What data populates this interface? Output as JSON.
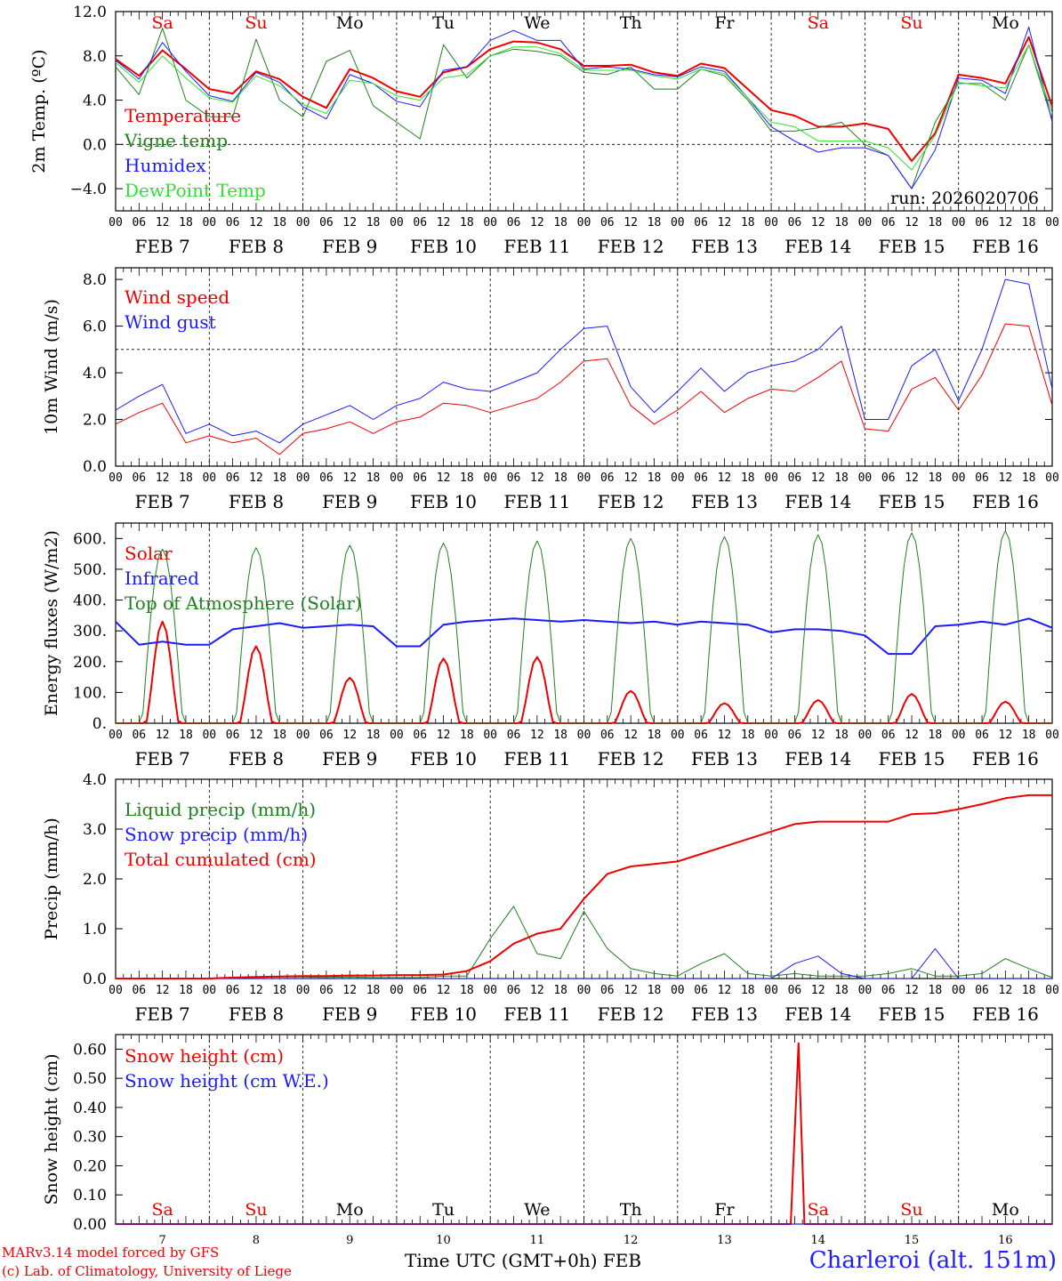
{
  "run": "run: 2026020706",
  "day_labels": [
    "FEB  7",
    "FEB  8",
    "FEB  9",
    "FEB 10",
    "FEB 11",
    "FEB 12",
    "FEB 13",
    "FEB 14",
    "FEB 15",
    "FEB 16"
  ],
  "hour_labels": [
    "00",
    "06",
    "12",
    "18"
  ],
  "hour_label_end": "00",
  "weekdays": [
    {
      "name": "Sa",
      "color": "#ee0000"
    },
    {
      "name": "Su",
      "color": "#ee0000"
    },
    {
      "name": "Mo",
      "color": "#000000"
    },
    {
      "name": "Tu",
      "color": "#000000"
    },
    {
      "name": "We",
      "color": "#000000"
    },
    {
      "name": "Th",
      "color": "#000000"
    },
    {
      "name": "Fr",
      "color": "#000000"
    },
    {
      "name": "Sa",
      "color": "#ee0000"
    },
    {
      "name": "Su",
      "color": "#ee0000"
    },
    {
      "name": "Mo",
      "color": "#000000"
    }
  ],
  "bottom_day_numbers": [
    "7",
    "8",
    "9",
    "10",
    "11",
    "12",
    "13",
    "14",
    "15",
    "16"
  ],
  "footer": {
    "credit_line1": "MARv3.14 model forced by GFS",
    "credit_line2": "(c) Lab. of Climatology, University of Liege",
    "time_axis": "Time UTC (GMT+0h) FEB",
    "station": "Charleroi (alt. 151m)"
  },
  "chart_data": [
    {
      "type": "line",
      "title": "2m Temp. (ºC)",
      "ylabel": "2m Temp. (ºC)",
      "xlabel": "Time UTC",
      "ylim": [
        -6,
        12
      ],
      "yticks": [
        -4,
        0,
        4,
        8,
        12
      ],
      "ytick_labels": [
        "−4.0",
        "0.0",
        "4.0",
        "8.0",
        "12.0"
      ],
      "ref_line": 0,
      "x_hours": [
        0,
        6,
        12,
        18,
        24,
        30,
        36,
        42,
        48,
        54,
        60,
        66,
        72,
        78,
        84,
        90,
        96,
        102,
        108,
        114,
        120,
        126,
        132,
        138,
        144,
        150,
        156,
        162,
        168,
        174,
        180,
        186,
        192,
        198,
        204,
        210,
        216,
        222,
        228,
        234,
        240
      ],
      "series": [
        {
          "name": "Temperature",
          "color": "#ee0000",
          "width": 2,
          "values": [
            7.7,
            6.2,
            8.5,
            6.8,
            5.0,
            4.6,
            6.6,
            5.9,
            4.3,
            3.3,
            6.8,
            6.0,
            4.8,
            4.3,
            6.5,
            7.0,
            8.6,
            9.3,
            9.2,
            8.6,
            7.1,
            7.1,
            7.2,
            6.5,
            6.2,
            7.3,
            6.9,
            5.0,
            3.1,
            2.6,
            1.6,
            1.6,
            1.9,
            1.4,
            -1.5,
            1.0,
            6.3,
            6.0,
            5.5,
            9.7,
            3.4
          ]
        },
        {
          "name": "Vigne temp",
          "color": "#208020",
          "width": 1,
          "values": [
            7.0,
            4.5,
            10.5,
            4.0,
            2.5,
            2.5,
            9.5,
            4.0,
            2.5,
            7.5,
            8.5,
            3.5,
            2.0,
            0.5,
            9.0,
            6.0,
            8.0,
            8.6,
            8.4,
            8.0,
            6.5,
            6.3,
            7.0,
            5.0,
            5.0,
            6.8,
            6.2,
            4.0,
            1.2,
            1.2,
            1.5,
            2.0,
            0.0,
            -1.0,
            -4.0,
            2.0,
            5.5,
            5.5,
            4.0,
            9.0,
            2.2
          ]
        },
        {
          "name": "Humidex",
          "color": "#1a1aff",
          "width": 1,
          "values": [
            7.6,
            5.9,
            9.2,
            6.6,
            4.4,
            3.9,
            6.5,
            5.6,
            3.4,
            2.3,
            6.3,
            5.5,
            3.9,
            3.4,
            6.7,
            7.0,
            9.4,
            10.3,
            9.4,
            9.4,
            6.8,
            7.0,
            6.8,
            6.3,
            6.1,
            7.0,
            6.6,
            4.2,
            1.6,
            0.3,
            -0.7,
            -0.3,
            -0.3,
            -1.0,
            -4.0,
            -0.5,
            6.0,
            5.8,
            4.6,
            10.6,
            2.0
          ]
        },
        {
          "name": "DewPoint Temp",
          "color": "#30e030",
          "width": 1,
          "values": [
            7.4,
            5.6,
            8.0,
            6.0,
            4.2,
            3.8,
            6.2,
            5.3,
            3.6,
            2.8,
            5.8,
            5.5,
            4.4,
            4.0,
            6.0,
            6.3,
            8.0,
            8.8,
            8.8,
            8.2,
            6.7,
            6.7,
            6.7,
            6.2,
            5.9,
            6.8,
            6.4,
            4.2,
            2.0,
            1.6,
            0.3,
            0.3,
            0.3,
            -0.3,
            -2.3,
            0.8,
            5.6,
            5.3,
            5.1,
            9.0,
            2.8
          ]
        }
      ]
    },
    {
      "type": "line",
      "title": "10m Wind (m/s)",
      "ylabel": "10m Wind (m/s)",
      "xlabel": "Time UTC",
      "ylim": [
        0,
        8.5
      ],
      "yticks": [
        0,
        2,
        4,
        6,
        8
      ],
      "ytick_labels": [
        "0.0",
        "2.0",
        "4.0",
        "6.0",
        "8.0"
      ],
      "ref_line": 5,
      "x_hours": [
        0,
        6,
        12,
        18,
        24,
        30,
        36,
        42,
        48,
        54,
        60,
        66,
        72,
        78,
        84,
        90,
        96,
        102,
        108,
        114,
        120,
        126,
        132,
        138,
        144,
        150,
        156,
        162,
        168,
        174,
        180,
        186,
        192,
        198,
        204,
        210,
        216,
        222,
        228,
        234,
        240
      ],
      "series": [
        {
          "name": "Wind speed",
          "color": "#ee0000",
          "width": 1,
          "values": [
            1.8,
            2.3,
            2.7,
            1.0,
            1.3,
            1.0,
            1.2,
            0.5,
            1.4,
            1.6,
            1.9,
            1.4,
            1.9,
            2.1,
            2.7,
            2.6,
            2.3,
            2.6,
            2.9,
            3.6,
            4.5,
            4.6,
            2.6,
            1.8,
            2.4,
            3.2,
            2.3,
            2.9,
            3.3,
            3.2,
            3.8,
            4.5,
            1.6,
            1.5,
            3.3,
            3.8,
            2.4,
            3.9,
            6.1,
            6.0,
            2.6
          ]
        },
        {
          "name": "Wind gust",
          "color": "#1a1aff",
          "width": 1,
          "values": [
            2.4,
            3.0,
            3.5,
            1.4,
            1.8,
            1.3,
            1.5,
            1.0,
            1.8,
            2.2,
            2.6,
            2.0,
            2.6,
            2.9,
            3.6,
            3.3,
            3.2,
            3.6,
            4.0,
            5.0,
            5.9,
            6.0,
            3.4,
            2.3,
            3.2,
            4.2,
            3.2,
            4.0,
            4.3,
            4.5,
            5.0,
            6.0,
            2.0,
            2.0,
            4.3,
            5.0,
            2.8,
            5.0,
            8.0,
            7.8,
            3.3
          ]
        }
      ]
    },
    {
      "type": "line",
      "title": "Energy fluxes (W/m2)",
      "ylabel": "Energy fluxes (W/m2)",
      "xlabel": "Time UTC",
      "ylim": [
        0,
        650
      ],
      "yticks": [
        0,
        100,
        200,
        300,
        400,
        500,
        600
      ],
      "ytick_labels": [
        "0.",
        "100.",
        "200.",
        "300.",
        "400.",
        "500.",
        "600."
      ],
      "days": 10,
      "series": [
        {
          "name": "Solar",
          "color": "#ee0000",
          "width": 2,
          "daily_peak": [
            330,
            250,
            148,
            210,
            215,
            105,
            65,
            75,
            95,
            70
          ]
        },
        {
          "name": "Infrared",
          "color": "#1a1aff",
          "width": 2,
          "x_hours": [
            0,
            6,
            12,
            18,
            24,
            30,
            36,
            42,
            48,
            54,
            60,
            66,
            72,
            78,
            84,
            90,
            96,
            102,
            108,
            114,
            120,
            126,
            132,
            138,
            144,
            150,
            156,
            162,
            168,
            174,
            180,
            186,
            192,
            198,
            204,
            210,
            216,
            222,
            228,
            234,
            240
          ],
          "values": [
            330,
            255,
            265,
            255,
            255,
            305,
            315,
            325,
            310,
            315,
            320,
            315,
            250,
            250,
            320,
            330,
            335,
            340,
            335,
            330,
            335,
            330,
            325,
            330,
            320,
            330,
            325,
            320,
            295,
            305,
            305,
            300,
            285,
            225,
            225,
            315,
            320,
            330,
            320,
            340,
            310
          ]
        },
        {
          "name": "Top of Atmosphere (Solar)",
          "color": "#208020",
          "width": 1,
          "daily_peak": [
            565,
            570,
            578,
            585,
            592,
            600,
            606,
            612,
            618,
            625
          ]
        }
      ]
    },
    {
      "type": "line",
      "title": "Precip (mm/h)",
      "ylabel": "Precip (mm/h)",
      "xlabel": "Time UTC",
      "ylim": [
        0,
        4
      ],
      "yticks": [
        0,
        1,
        2,
        3,
        4
      ],
      "ytick_labels": [
        "0.0",
        "1.0",
        "2.0",
        "3.0",
        "4.0"
      ],
      "x_hours": [
        0,
        6,
        12,
        18,
        24,
        30,
        36,
        42,
        48,
        54,
        60,
        66,
        72,
        78,
        84,
        90,
        96,
        102,
        108,
        114,
        120,
        126,
        132,
        138,
        144,
        150,
        156,
        162,
        168,
        174,
        180,
        186,
        192,
        198,
        204,
        210,
        216,
        222,
        228,
        234,
        240
      ],
      "series": [
        {
          "name": "Liquid precip (mm/h)",
          "color": "#208020",
          "width": 1,
          "values": [
            0,
            0,
            0,
            0,
            0,
            0.02,
            0.02,
            0.03,
            0.03,
            0.02,
            0.03,
            0.02,
            0.02,
            0.02,
            0.05,
            0.05,
            0.8,
            1.45,
            0.5,
            0.4,
            1.35,
            0.6,
            0.2,
            0.1,
            0.05,
            0.3,
            0.5,
            0.1,
            0.05,
            0.1,
            0.05,
            0.05,
            0.05,
            0.1,
            0.2,
            0.05,
            0.05,
            0.1,
            0.4,
            0.2,
            0.02
          ]
        },
        {
          "name": "Snow precip (mm/h)",
          "color": "#1a1aff",
          "width": 1,
          "values": [
            0,
            0,
            0,
            0,
            0,
            0,
            0,
            0,
            0,
            0,
            0,
            0,
            0,
            0,
            0,
            0,
            0,
            0,
            0,
            0,
            0,
            0,
            0,
            0,
            0,
            0,
            0,
            0,
            0,
            0.3,
            0.45,
            0.1,
            0,
            0,
            0,
            0.6,
            0,
            0,
            0,
            0,
            0
          ]
        },
        {
          "name": "Total cumulated (cm)",
          "color": "#ee0000",
          "width": 2,
          "values": [
            0,
            0,
            0,
            0,
            0,
            0.02,
            0.03,
            0.04,
            0.05,
            0.05,
            0.06,
            0.06,
            0.07,
            0.07,
            0.08,
            0.15,
            0.35,
            0.7,
            0.9,
            1.0,
            1.6,
            2.1,
            2.25,
            2.3,
            2.35,
            2.5,
            2.65,
            2.8,
            2.95,
            3.1,
            3.15,
            3.15,
            3.15,
            3.15,
            3.3,
            3.32,
            3.4,
            3.5,
            3.62,
            3.68,
            3.68
          ]
        }
      ]
    },
    {
      "type": "line",
      "title": "Snow height (cm)",
      "ylabel": "Snow height (cm)",
      "xlabel": "Time UTC (GMT+0h) FEB",
      "ylim": [
        0,
        0.65
      ],
      "yticks": [
        0,
        0.1,
        0.2,
        0.3,
        0.4,
        0.5,
        0.6
      ],
      "ytick_labels": [
        "0.00",
        "0.10",
        "0.20",
        "0.30",
        "0.40",
        "0.50",
        "0.60"
      ],
      "series": [
        {
          "name": "Snow height (cm)",
          "color": "#ee0000",
          "width": 2,
          "x_hours": [
            0,
            173,
            175,
            176.5,
            178,
            240
          ],
          "values": [
            0,
            0,
            0.62,
            0,
            0,
            0
          ]
        },
        {
          "name": "Snow height (cm W.E.)",
          "color": "#1a1aff",
          "width": 1,
          "x_hours": [
            0,
            240
          ],
          "values": [
            0,
            0
          ]
        }
      ]
    }
  ]
}
